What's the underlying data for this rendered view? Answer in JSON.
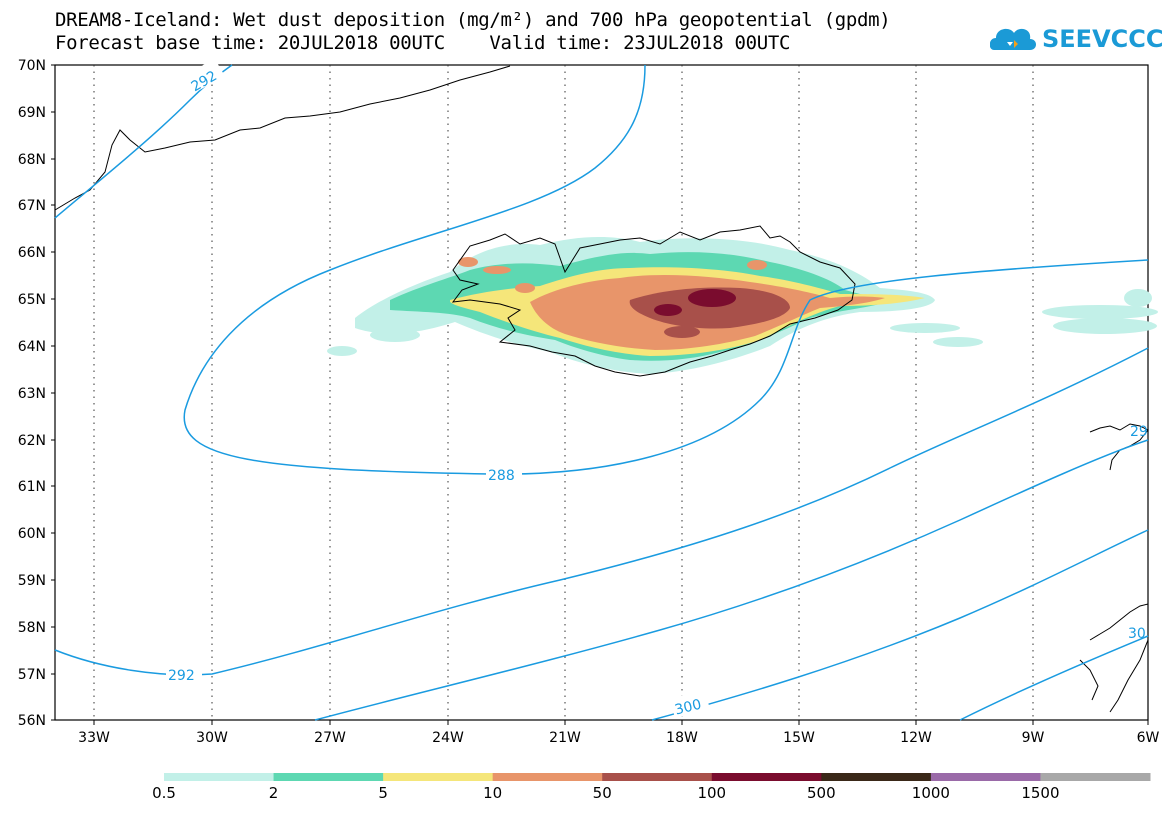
{
  "title_line1": "DREAM8-Iceland: Wet dust deposition (mg/m²) and 700 hPa geopotential (gpdm)",
  "title_line2": "Forecast base time: 20JUL2018 00UTC    Valid time: 23JUL2018 00UTC",
  "logo_text": "SEEVCCC",
  "lat_labels": [
    "70N",
    "69N",
    "68N",
    "67N",
    "66N",
    "65N",
    "64N",
    "63N",
    "62N",
    "61N",
    "60N",
    "59N",
    "58N",
    "57N",
    "56N"
  ],
  "lon_labels": [
    "33W",
    "30W",
    "27W",
    "24W",
    "21W",
    "18W",
    "15W",
    "12W",
    "9W",
    "6W"
  ],
  "contour_labels": [
    "292",
    "288",
    "292",
    "300",
    "29",
    "30"
  ],
  "colorbar": {
    "labels": [
      "0.5",
      "2",
      "5",
      "10",
      "50",
      "100",
      "500",
      "1000",
      "1500"
    ],
    "colors": [
      "#c2f0e8",
      "#5dd8b2",
      "#f5e67a",
      "#e8956a",
      "#a8504a",
      "#7a0c2e",
      "#3a2818",
      "#9a6aa8",
      "#a8a8a8"
    ]
  },
  "colors": {
    "contour": "#1a9be0",
    "accent": "#1b9ad6"
  }
}
